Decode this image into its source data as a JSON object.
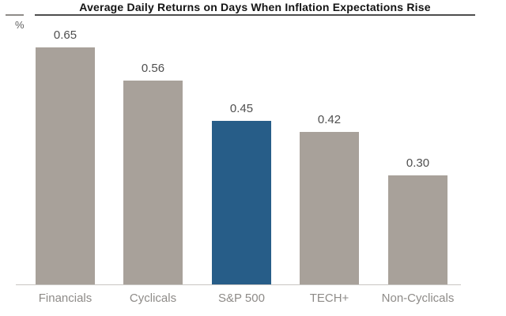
{
  "chart_data": {
    "type": "bar",
    "title": "Average Daily Returns on Days When Inflation Expectations Rise",
    "xlabel": "",
    "ylabel": "%",
    "categories": [
      "Financials",
      "Cyclicals",
      "S&P 500",
      "TECH+",
      "Non-Cyclicals"
    ],
    "values": [
      0.65,
      0.56,
      0.45,
      0.42,
      0.3
    ],
    "value_labels": [
      "0.65",
      "0.56",
      "0.45",
      "0.42",
      "0.30"
    ],
    "ylim": [
      0,
      0.78
    ],
    "grid": false,
    "legend": "none",
    "highlighted_category": "S&P 500",
    "bar_colors": [
      "#a8a19a",
      "#a8a19a",
      "#275d88",
      "#a8a19a",
      "#a8a19a"
    ]
  },
  "colors": {
    "bar_default": "#a8a19a",
    "bar_highlight": "#275d88",
    "axis_line": "#c9c6c3",
    "title_text": "#141414",
    "title_rule": "#4d4d4d",
    "value_label": "#4f4f4f",
    "category_label": "#8e8b88"
  }
}
